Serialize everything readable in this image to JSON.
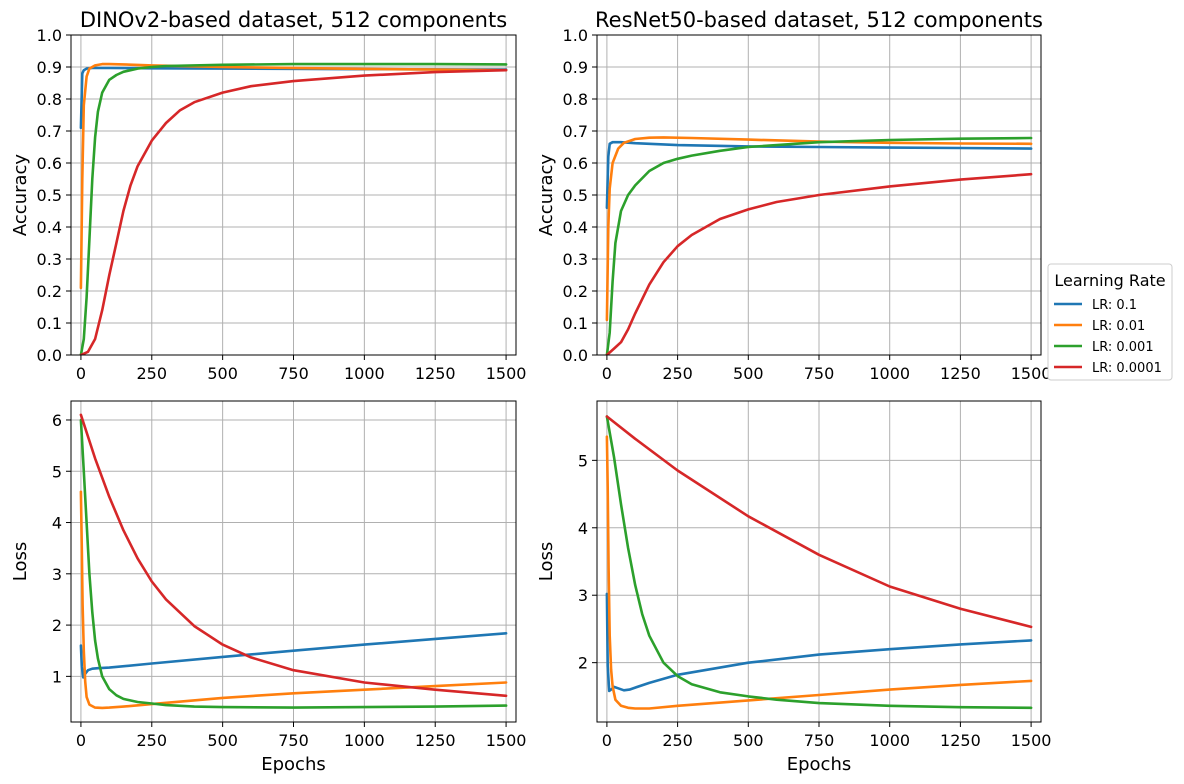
{
  "chart_data": [
    {
      "id": "dino-acc",
      "type": "line",
      "title": "DINOv2-based dataset, 512 components",
      "xlabel": "",
      "ylabel": "Accuracy",
      "xlim": [
        -35,
        1535
      ],
      "ylim": [
        0,
        1.0
      ],
      "xticks": [
        0,
        250,
        500,
        750,
        1000,
        1250,
        1500
      ],
      "yticks": [
        0.0,
        0.1,
        0.2,
        0.3,
        0.4,
        0.5,
        0.6,
        0.7,
        0.8,
        0.9,
        1.0
      ],
      "ytick_decimals": 1,
      "grid": true,
      "series": [
        {
          "name": "LR: 0.1",
          "color": "#1f77b4",
          "x": [
            0,
            5,
            10,
            20,
            40,
            100,
            250,
            500,
            1000,
            1500
          ],
          "y": [
            0.71,
            0.88,
            0.89,
            0.895,
            0.897,
            0.897,
            0.896,
            0.895,
            0.893,
            0.892
          ]
        },
        {
          "name": "LR: 0.01",
          "color": "#ff7f0e",
          "x": [
            0,
            5,
            10,
            20,
            30,
            50,
            75,
            100,
            150,
            250,
            500,
            1000,
            1500
          ],
          "y": [
            0.21,
            0.55,
            0.78,
            0.87,
            0.895,
            0.905,
            0.909,
            0.909,
            0.908,
            0.905,
            0.9,
            0.894,
            0.89
          ]
        },
        {
          "name": "LR: 0.001",
          "color": "#2ca02c",
          "x": [
            0,
            10,
            20,
            30,
            40,
            50,
            60,
            75,
            100,
            125,
            150,
            200,
            250,
            300,
            500,
            750,
            1000,
            1250,
            1500
          ],
          "y": [
            0.0,
            0.05,
            0.18,
            0.36,
            0.55,
            0.68,
            0.76,
            0.82,
            0.86,
            0.875,
            0.885,
            0.895,
            0.9,
            0.903,
            0.907,
            0.909,
            0.909,
            0.909,
            0.908
          ]
        },
        {
          "name": "LR: 0.0001",
          "color": "#d62728",
          "x": [
            0,
            25,
            50,
            75,
            100,
            125,
            150,
            175,
            200,
            250,
            300,
            350,
            400,
            500,
            600,
            750,
            1000,
            1250,
            1500
          ],
          "y": [
            0.0,
            0.01,
            0.05,
            0.14,
            0.25,
            0.35,
            0.45,
            0.53,
            0.59,
            0.67,
            0.725,
            0.765,
            0.79,
            0.82,
            0.84,
            0.856,
            0.873,
            0.884,
            0.89
          ]
        }
      ]
    },
    {
      "id": "resnet-acc",
      "type": "line",
      "title": "ResNet50-based dataset, 512 components",
      "xlabel": "",
      "ylabel": "Accuracy",
      "xlim": [
        -35,
        1535
      ],
      "ylim": [
        0,
        1.0
      ],
      "xticks": [
        0,
        250,
        500,
        750,
        1000,
        1250,
        1500
      ],
      "yticks": [
        0.0,
        0.1,
        0.2,
        0.3,
        0.4,
        0.5,
        0.6,
        0.7,
        0.8,
        0.9,
        1.0
      ],
      "ytick_decimals": 1,
      "grid": true,
      "series": [
        {
          "name": "LR: 0.1",
          "color": "#1f77b4",
          "x": [
            0,
            5,
            10,
            20,
            50,
            100,
            250,
            500,
            750,
            1000,
            1250,
            1500
          ],
          "y": [
            0.46,
            0.62,
            0.66,
            0.665,
            0.665,
            0.662,
            0.656,
            0.652,
            0.65,
            0.648,
            0.647,
            0.645
          ]
        },
        {
          "name": "LR: 0.01",
          "color": "#ff7f0e",
          "x": [
            0,
            5,
            10,
            20,
            40,
            60,
            100,
            150,
            200,
            300,
            500,
            750,
            1000,
            1250,
            1500
          ],
          "y": [
            0.11,
            0.4,
            0.52,
            0.6,
            0.645,
            0.663,
            0.675,
            0.679,
            0.68,
            0.678,
            0.673,
            0.667,
            0.663,
            0.661,
            0.66
          ]
        },
        {
          "name": "LR: 0.001",
          "color": "#2ca02c",
          "x": [
            0,
            10,
            20,
            30,
            50,
            75,
            100,
            150,
            200,
            250,
            300,
            400,
            500,
            750,
            1000,
            1250,
            1500
          ],
          "y": [
            0.0,
            0.07,
            0.23,
            0.35,
            0.45,
            0.5,
            0.53,
            0.575,
            0.6,
            0.613,
            0.623,
            0.638,
            0.65,
            0.665,
            0.672,
            0.676,
            0.678
          ]
        },
        {
          "name": "LR: 0.0001",
          "color": "#d62728",
          "x": [
            0,
            25,
            50,
            75,
            100,
            150,
            200,
            250,
            300,
            400,
            500,
            600,
            750,
            1000,
            1250,
            1500
          ],
          "y": [
            0.0,
            0.02,
            0.04,
            0.08,
            0.13,
            0.22,
            0.29,
            0.34,
            0.375,
            0.425,
            0.455,
            0.478,
            0.5,
            0.527,
            0.548,
            0.565
          ]
        }
      ]
    },
    {
      "id": "dino-loss",
      "type": "line",
      "title": "",
      "xlabel": "Epochs",
      "ylabel": "Loss",
      "xlim": [
        -35,
        1535
      ],
      "ylim": [
        0.11,
        6.37
      ],
      "xticks": [
        0,
        250,
        500,
        750,
        1000,
        1250,
        1500
      ],
      "yticks": [
        1,
        2,
        3,
        4,
        5,
        6
      ],
      "ytick_decimals": 0,
      "grid": true,
      "series": [
        {
          "name": "LR: 0.1",
          "color": "#1f77b4",
          "x": [
            0,
            3,
            8,
            15,
            25,
            40,
            60,
            100,
            250,
            500,
            750,
            1000,
            1250,
            1500
          ],
          "y": [
            1.6,
            1.2,
            0.98,
            1.05,
            1.12,
            1.15,
            1.16,
            1.17,
            1.25,
            1.38,
            1.5,
            1.62,
            1.73,
            1.84
          ]
        },
        {
          "name": "LR: 0.01",
          "color": "#ff7f0e",
          "x": [
            0,
            3,
            6,
            10,
            15,
            20,
            30,
            50,
            75,
            100,
            150,
            250,
            500,
            750,
            1000,
            1250,
            1500
          ],
          "y": [
            4.6,
            3.5,
            2.4,
            1.5,
            0.9,
            0.6,
            0.45,
            0.39,
            0.385,
            0.39,
            0.41,
            0.46,
            0.58,
            0.67,
            0.74,
            0.81,
            0.88
          ]
        },
        {
          "name": "LR: 0.001",
          "color": "#2ca02c",
          "x": [
            0,
            10,
            20,
            30,
            40,
            50,
            60,
            75,
            100,
            125,
            150,
            200,
            250,
            300,
            400,
            500,
            750,
            1000,
            1250,
            1500
          ],
          "y": [
            6.0,
            5.0,
            4.0,
            3.0,
            2.25,
            1.7,
            1.35,
            1.0,
            0.75,
            0.63,
            0.56,
            0.5,
            0.47,
            0.44,
            0.41,
            0.4,
            0.39,
            0.4,
            0.41,
            0.43
          ]
        },
        {
          "name": "LR: 0.0001",
          "color": "#d62728",
          "x": [
            0,
            50,
            100,
            150,
            200,
            250,
            300,
            400,
            500,
            600,
            750,
            1000,
            1250,
            1500
          ],
          "y": [
            6.1,
            5.25,
            4.5,
            3.85,
            3.3,
            2.85,
            2.5,
            1.98,
            1.62,
            1.37,
            1.12,
            0.88,
            0.74,
            0.62
          ]
        }
      ]
    },
    {
      "id": "resnet-loss",
      "type": "line",
      "title": "",
      "xlabel": "Epochs",
      "ylabel": "Loss",
      "xlim": [
        -35,
        1535
      ],
      "ylim": [
        1.12,
        5.88
      ],
      "xticks": [
        0,
        250,
        500,
        750,
        1000,
        1250,
        1500
      ],
      "yticks": [
        2,
        3,
        4,
        5
      ],
      "ytick_decimals": 0,
      "grid": true,
      "series": [
        {
          "name": "LR: 0.1",
          "color": "#1f77b4",
          "x": [
            0,
            3,
            8,
            15,
            25,
            40,
            60,
            80,
            100,
            150,
            250,
            500,
            750,
            1000,
            1250,
            1500
          ],
          "y": [
            3.02,
            1.95,
            1.58,
            1.6,
            1.64,
            1.62,
            1.59,
            1.6,
            1.63,
            1.7,
            1.82,
            2.0,
            2.12,
            2.2,
            2.27,
            2.33
          ]
        },
        {
          "name": "LR: 0.01",
          "color": "#ff7f0e",
          "x": [
            0,
            3,
            6,
            10,
            15,
            20,
            30,
            50,
            75,
            100,
            150,
            250,
            500,
            750,
            1000,
            1250,
            1500
          ],
          "y": [
            5.35,
            4.6,
            3.4,
            2.4,
            1.9,
            1.65,
            1.45,
            1.36,
            1.33,
            1.32,
            1.32,
            1.36,
            1.44,
            1.52,
            1.6,
            1.67,
            1.73
          ]
        },
        {
          "name": "LR: 0.001",
          "color": "#2ca02c",
          "x": [
            0,
            25,
            50,
            75,
            100,
            125,
            150,
            200,
            250,
            300,
            400,
            500,
            600,
            750,
            1000,
            1250,
            1500
          ],
          "y": [
            5.65,
            5.05,
            4.35,
            3.7,
            3.15,
            2.72,
            2.4,
            2.0,
            1.8,
            1.68,
            1.56,
            1.5,
            1.45,
            1.4,
            1.36,
            1.34,
            1.33
          ]
        },
        {
          "name": "LR: 0.0001",
          "color": "#d62728",
          "x": [
            0,
            100,
            250,
            500,
            750,
            1000,
            1250,
            1500
          ],
          "y": [
            5.65,
            5.32,
            4.85,
            4.17,
            3.6,
            3.13,
            2.8,
            2.53
          ]
        }
      ]
    }
  ],
  "legend": {
    "title": "Learning Rate",
    "items": [
      {
        "label": "LR: 0.1",
        "color": "#1f77b4"
      },
      {
        "label": "LR: 0.01",
        "color": "#ff7f0e"
      },
      {
        "label": "LR: 0.001",
        "color": "#2ca02c"
      },
      {
        "label": "LR: 0.0001",
        "color": "#d62728"
      }
    ]
  }
}
